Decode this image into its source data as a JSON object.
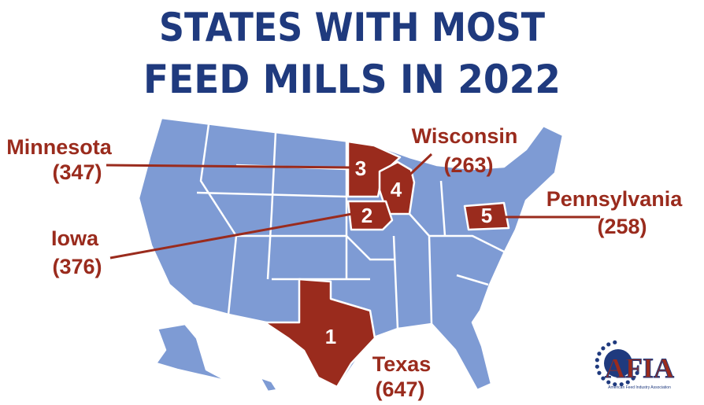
{
  "title": [
    "STATES WITH MOST",
    "FEED MILLS IN 2022"
  ],
  "states": [
    {
      "name": "Texas",
      "rank": 1,
      "count": "(647)"
    },
    {
      "name": "Iowa",
      "rank": 2,
      "count": "(376)"
    },
    {
      "name": "Minnesota",
      "rank": 3,
      "count": "(347)"
    },
    {
      "name": "Wisconsin",
      "rank": 4,
      "count": "(263)"
    },
    {
      "name": "Pennsylvania",
      "rank": 5,
      "count": "(258)"
    }
  ],
  "logo": {
    "name": "AFIA",
    "tagline": "American Feed Industry Association"
  }
}
